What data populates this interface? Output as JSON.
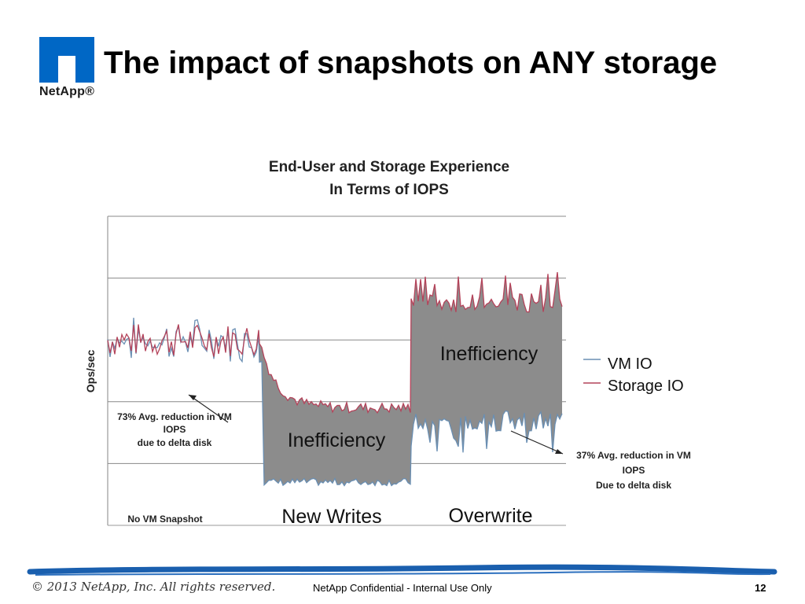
{
  "slide": {
    "title": "The impact of snapshots on ANY storage",
    "logo_text": "NetApp®",
    "footer_copyright": "© 2013 NetApp, Inc. All rights reserved.",
    "footer_confidential": "NetApp Confidential - Internal Use Only",
    "page_number": "12"
  },
  "colors": {
    "accent_blue": "#0067c5",
    "footer_stroke": "#1a5fae",
    "vm_io": "#6a8fb3",
    "storage_io": "#b4435a",
    "fill": "#8c8c8c"
  },
  "chart_data": {
    "type": "line",
    "title": "End-User and Storage Experience",
    "subtitle": "In Terms of IOPS",
    "ylabel": "Ops/sec",
    "xlabel": "",
    "grid": true,
    "legend_position": "right",
    "series": [
      {
        "name": "VM IO",
        "color": "#6a8fb3"
      },
      {
        "name": "Storage IO",
        "color": "#b4435a"
      }
    ],
    "phases": [
      {
        "label": "No VM Snapshot",
        "vm_io_level": 3.0,
        "storage_io_level": 3.0
      },
      {
        "label": "New Writes",
        "vm_io_level": 0.7,
        "storage_io_level": 1.9
      },
      {
        "label": "Overwrite",
        "vm_io_level": 1.7,
        "storage_io_level": 3.6
      }
    ],
    "annotations": {
      "inefficiency_overwrite": "Inefficiency",
      "inefficiency_new_writes": "Inefficiency",
      "left_reduction": [
        "73% Avg. reduction in VM",
        "IOPS",
        "due to delta disk"
      ],
      "right_reduction": [
        "37% Avg. reduction in VM",
        "IOPS",
        "Due to delta disk"
      ]
    }
  }
}
